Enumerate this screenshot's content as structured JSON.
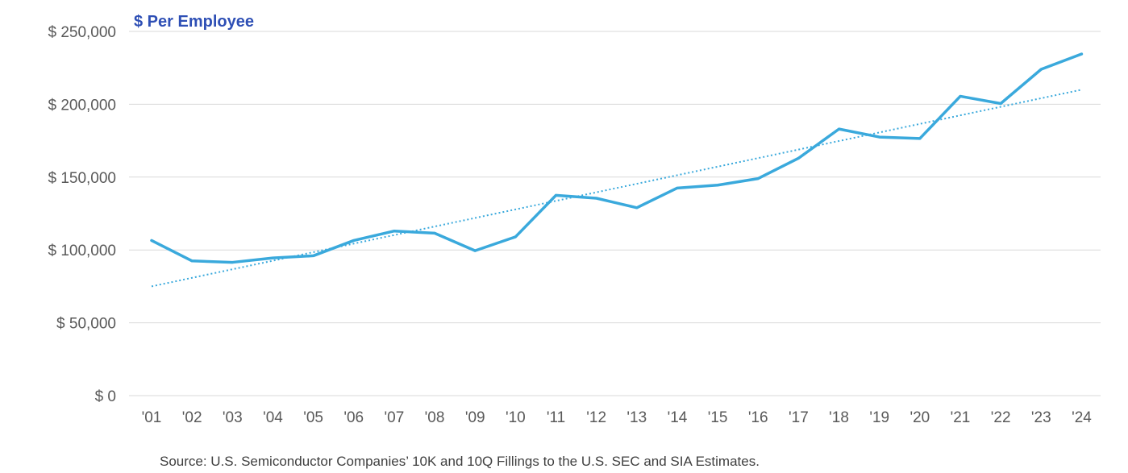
{
  "chart_data": {
    "type": "line",
    "title": "$ Per Employee",
    "categories": [
      "'01",
      "'02",
      "'03",
      "'04",
      "'05",
      "'06",
      "'07",
      "'08",
      "'09",
      "'10",
      "'11",
      "'12",
      "'13",
      "'14",
      "'15",
      "'16",
      "'17",
      "'18",
      "'19",
      "'20",
      "'21",
      "'22",
      "'23",
      "'24"
    ],
    "series": [
      {
        "values": [
          106500,
          92500,
          91500,
          94500,
          96000,
          106500,
          113000,
          111500,
          99500,
          109000,
          137500,
          135500,
          129000,
          142500,
          144500,
          149000,
          163000,
          183000,
          177500,
          176500,
          205500,
          200500,
          224000,
          234500
        ]
      }
    ],
    "trendline": {
      "type": "linear",
      "start": 75000,
      "end": 210000
    },
    "y_ticks": [
      "$ 0",
      "$ 50,000",
      "$ 100,000",
      "$ 150,000",
      "$ 200,000",
      "$ 250,000"
    ],
    "ylim": [
      0,
      250000
    ],
    "xlabel": "",
    "ylabel": "",
    "grid": true,
    "legend": "none",
    "source": "Source: U.S. Semiconductor Companies’ 10K and 10Q Fillings to the U.S. SEC and SIA Estimates.",
    "colors": {
      "series": "#3aa9dc",
      "trend": "#3aa9dc",
      "title": "#2e4fb5",
      "grid": "#d9d9d9",
      "tick": "#595959"
    }
  }
}
